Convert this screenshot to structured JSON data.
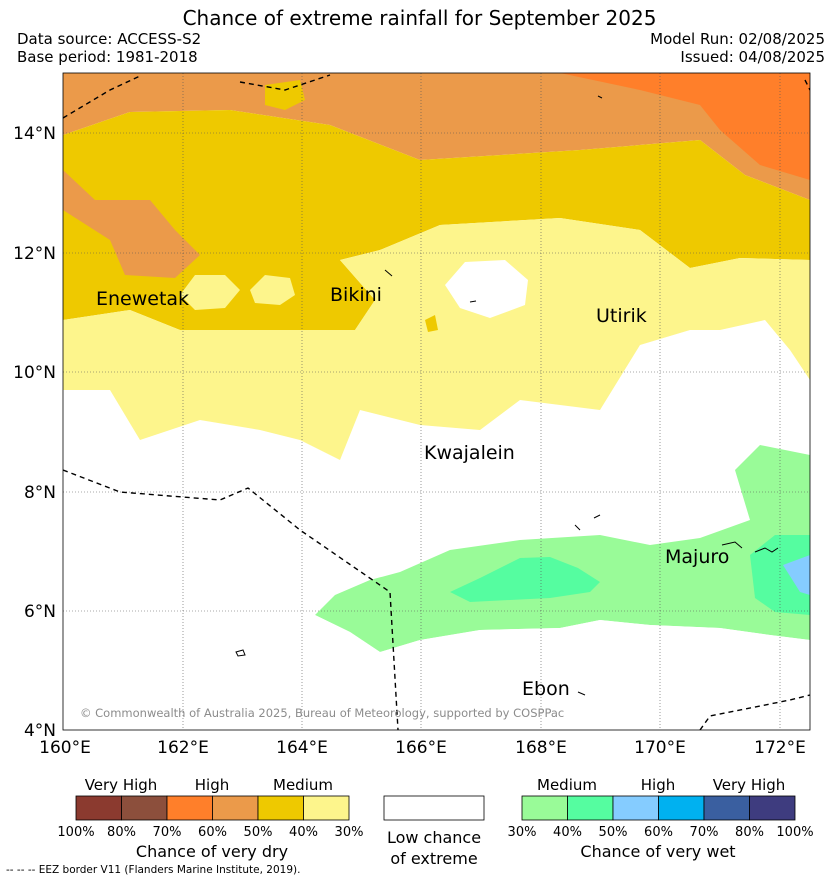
{
  "title": "Chance of extreme rainfall for September 2025",
  "header": {
    "data_source": "Data source: ACCESS-S2",
    "base_period": "Base period: 1981-2018",
    "model_run": "Model Run: 02/08/2025",
    "issued": "Issued: 04/08/2025"
  },
  "map": {
    "lat_labels": [
      "14°N",
      "12°N",
      "10°N",
      "8°N",
      "6°N",
      "4°N"
    ],
    "lon_labels": [
      "160°E",
      "162°E",
      "164°E",
      "166°E",
      "168°E",
      "170°E",
      "172°E"
    ],
    "places": [
      "Enewetak",
      "Bikini",
      "Utirik",
      "Kwajalein",
      "Majuro",
      "Ebon"
    ],
    "copyright": "© Commonwealth of Australia 2025, Bureau of Meteorology, supported by COSPPac"
  },
  "legend_dry": {
    "categories": [
      "Very High",
      "High",
      "Medium"
    ],
    "percent_labels": [
      "100%",
      "80%",
      "70%",
      "60%",
      "50%",
      "40%",
      "30%"
    ],
    "colors": [
      "#8b3a2f",
      "#8c4f3c",
      "#ff7f2a",
      "#eb9a4a",
      "#eec900",
      "#fdf58c"
    ],
    "title": "Chance of very dry"
  },
  "legend_low": {
    "line1": "Low chance",
    "line2": "of extreme"
  },
  "legend_wet": {
    "categories": [
      "Medium",
      "High",
      "Very High"
    ],
    "percent_labels": [
      "30%",
      "40%",
      "50%",
      "60%",
      "70%",
      "80%",
      "100%"
    ],
    "colors": [
      "#99fb98",
      "#55fda0",
      "#85ccff",
      "#00b1f0",
      "#3a5fa0",
      "#3e3c7f"
    ],
    "title": "Chance of very wet"
  },
  "eez_note": "--  --  -- EEZ border V11 (Flanders Marine Institute, 2019)."
}
